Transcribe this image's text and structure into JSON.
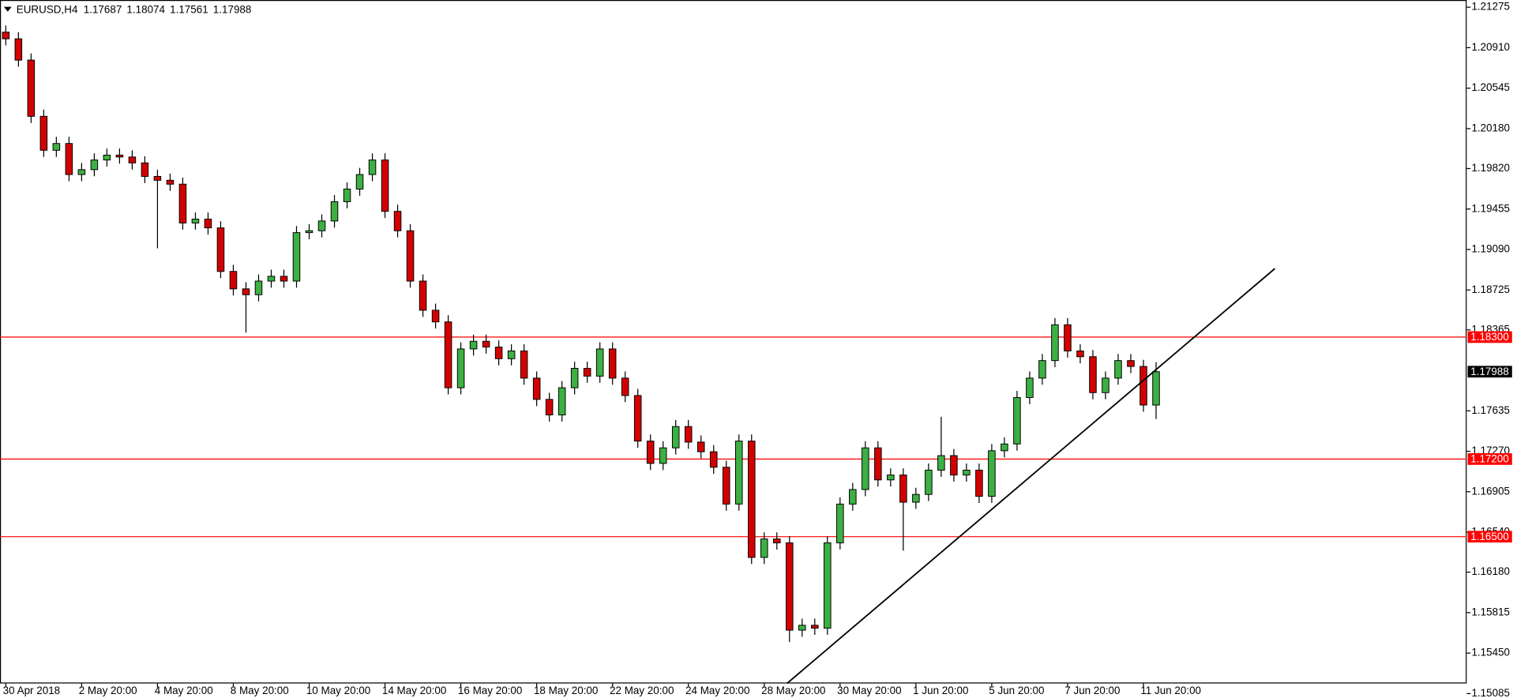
{
  "chart_data": {
    "type": "candlestick",
    "symbol": "EURUSD,H4",
    "categories": [
      "30 Apr 2018",
      null,
      null,
      null,
      null,
      null,
      "2 May 20:00",
      null,
      null,
      null,
      null,
      null,
      "4 May 20:00",
      null,
      null,
      null,
      null,
      null,
      "8 May 20:00",
      null,
      null,
      null,
      null,
      null,
      "10 May 20:00",
      null,
      null,
      null,
      null,
      null,
      "14 May 20:00",
      null,
      null,
      null,
      null,
      null,
      "16 May 20:00",
      null,
      null,
      null,
      null,
      null,
      "18 May 20:00",
      null,
      null,
      null,
      null,
      null,
      "22 May 20:00",
      null,
      null,
      null,
      null,
      null,
      "24 May 20:00",
      null,
      null,
      null,
      null,
      null,
      "28 May 20:00",
      null,
      null,
      null,
      null,
      null,
      "30 May 20:00",
      null,
      null,
      null,
      null,
      null,
      "1 Jun 20:00",
      null,
      null,
      null,
      null,
      null,
      "5 Jun 20:00",
      null,
      null,
      null,
      null,
      null,
      "7 Jun 20:00",
      null,
      null,
      null,
      null,
      null,
      "11 Jun 20:00",
      null
    ],
    "open": [
      1.2105,
      1.2099,
      1.20798,
      1.20291,
      1.19985,
      1.20046,
      1.19766,
      1.1981,
      1.19897,
      1.19941,
      1.19924,
      1.19871,
      1.19749,
      1.19714,
      1.19679,
      1.19329,
      1.19364,
      1.19285,
      1.18892,
      1.18735,
      1.18682,
      1.18805,
      1.18848,
      1.18805,
      1.19242,
      1.19259,
      1.19347,
      1.19521,
      1.19635,
      1.19766,
      1.19897,
      1.19434,
      1.19259,
      1.18805,
      1.18542,
      1.18437,
      1.17843,
      1.18193,
      1.18262,
      1.1821,
      1.18105,
      1.18175,
      1.1793,
      1.17738,
      1.17598,
      1.17843,
      1.18018,
      1.17948,
      1.18193,
      1.1793,
      1.17773,
      1.17362,
      1.17161,
      1.17301,
      1.17493,
      1.17353,
      1.17266,
      1.17126,
      1.16794,
      1.17362,
      1.16313,
      1.16479,
      1.16444,
      1.15657,
      1.15701,
      1.15675,
      1.16444,
      1.16794,
      1.16925,
      1.17301,
      1.17012,
      1.17056,
      1.16811,
      1.16881,
      1.171,
      1.17231,
      1.17056,
      1.171,
      1.16864,
      1.17275,
      1.17336,
      1.17755,
      1.1793,
      1.18088,
      1.18411,
      1.18175,
      1.18123,
      1.17799,
      1.1793,
      1.18088,
      1.18035,
      1.17687
    ],
    "high": [
      1.2111,
      1.2105,
      1.20858,
      1.20351,
      1.20106,
      1.20106,
      1.1987,
      1.19957,
      1.20001,
      1.20001,
      1.19984,
      1.19931,
      1.19809,
      1.19774,
      1.19739,
      1.19424,
      1.19424,
      1.19345,
      1.18952,
      1.18795,
      1.18865,
      1.18908,
      1.18908,
      1.19302,
      1.19319,
      1.19407,
      1.19581,
      1.19695,
      1.19826,
      1.19957,
      1.19957,
      1.19494,
      1.19319,
      1.18865,
      1.18602,
      1.18497,
      1.18253,
      1.18322,
      1.18322,
      1.1827,
      1.18235,
      1.18235,
      1.1799,
      1.17798,
      1.17903,
      1.18078,
      1.18078,
      1.18253,
      1.18253,
      1.1799,
      1.17833,
      1.17422,
      1.17361,
      1.17553,
      1.17553,
      1.17413,
      1.17326,
      1.17186,
      1.17422,
      1.17422,
      1.16539,
      1.16539,
      1.16504,
      1.15761,
      1.15761,
      1.16504,
      1.16854,
      1.16985,
      1.17361,
      1.17361,
      1.17116,
      1.17116,
      1.16941,
      1.1716,
      1.17581,
      1.17291,
      1.1716,
      1.1716,
      1.17335,
      1.17396,
      1.17815,
      1.1799,
      1.18148,
      1.18471,
      1.18471,
      1.18235,
      1.18183,
      1.1799,
      1.18148,
      1.18148,
      1.18095,
      1.18074
    ],
    "low": [
      1.2093,
      1.20738,
      1.20231,
      1.19925,
      1.19925,
      1.19706,
      1.19706,
      1.1975,
      1.19837,
      1.19864,
      1.19811,
      1.19689,
      1.191,
      1.19619,
      1.19269,
      1.19269,
      1.19225,
      1.18832,
      1.18675,
      1.18341,
      1.18622,
      1.18745,
      1.18745,
      1.18745,
      1.19182,
      1.19199,
      1.19287,
      1.19461,
      1.19575,
      1.19706,
      1.19374,
      1.19199,
      1.18745,
      1.18482,
      1.18377,
      1.17783,
      1.17783,
      1.18133,
      1.1815,
      1.18045,
      1.18045,
      1.1787,
      1.17678,
      1.17538,
      1.17538,
      1.17783,
      1.17888,
      1.17888,
      1.1787,
      1.17713,
      1.17302,
      1.17101,
      1.17101,
      1.17241,
      1.17293,
      1.17206,
      1.17066,
      1.16734,
      1.16734,
      1.16253,
      1.16253,
      1.16384,
      1.1555,
      1.15597,
      1.15615,
      1.15615,
      1.16384,
      1.16734,
      1.16865,
      1.16952,
      1.16952,
      1.16374,
      1.16751,
      1.16821,
      1.1704,
      1.16996,
      1.16996,
      1.16804,
      1.16804,
      1.17215,
      1.17276,
      1.17695,
      1.1787,
      1.18028,
      1.18115,
      1.18063,
      1.17739,
      1.17739,
      1.1787,
      1.17975,
      1.17627,
      1.17561
    ],
    "close": [
      1.2099,
      1.20798,
      1.20291,
      1.19985,
      1.20046,
      1.19766,
      1.1981,
      1.19897,
      1.19941,
      1.19924,
      1.19871,
      1.19749,
      1.19714,
      1.19679,
      1.19329,
      1.19364,
      1.19285,
      1.18892,
      1.18735,
      1.18682,
      1.18805,
      1.18848,
      1.18805,
      1.19242,
      1.19259,
      1.19347,
      1.19521,
      1.19635,
      1.19766,
      1.19897,
      1.19434,
      1.19259,
      1.18805,
      1.18542,
      1.18437,
      1.17843,
      1.18193,
      1.18262,
      1.1821,
      1.18105,
      1.18175,
      1.1793,
      1.17738,
      1.17598,
      1.17843,
      1.18018,
      1.17948,
      1.18193,
      1.1793,
      1.17773,
      1.17362,
      1.17161,
      1.17301,
      1.17493,
      1.17353,
      1.17266,
      1.17126,
      1.16794,
      1.17362,
      1.16313,
      1.16479,
      1.16444,
      1.15657,
      1.15701,
      1.15675,
      1.16444,
      1.16794,
      1.16925,
      1.17301,
      1.17012,
      1.17056,
      1.16811,
      1.16881,
      1.171,
      1.17231,
      1.17056,
      1.171,
      1.16864,
      1.17275,
      1.17336,
      1.17755,
      1.1793,
      1.18088,
      1.18411,
      1.18175,
      1.18123,
      1.17799,
      1.1793,
      1.18088,
      1.18035,
      1.17687,
      1.17988
    ],
    "up_color": "#3cb043",
    "down_color": "#d40000",
    "ylim": [
      1.1508,
      1.2134
    ],
    "yticks": [
      1.21275,
      {
        "value": 1.2091,
        "label": "1.20910"
      },
      1.20545,
      {
        "value": 1.2018,
        "label": "1.20180"
      },
      {
        "value": 1.1982,
        "label": "1.19820"
      },
      1.19455,
      {
        "value": 1.1909,
        "label": "1.19090"
      },
      1.18725,
      1.18365,
      1.17635,
      {
        "value": 1.1727,
        "label": "1.17270"
      },
      1.16905,
      {
        "value": 1.1654,
        "label": "1.16540"
      },
      {
        "value": 1.1618,
        "label": "1.16180"
      },
      1.15815,
      {
        "value": 1.1545,
        "label": "1.15450"
      },
      1.15085
    ],
    "hline_color": "#ff0000",
    "hlines": [
      {
        "value": 1.183,
        "label": "1.18300"
      },
      {
        "value": 1.172,
        "label": "1.17200"
      },
      {
        "value": 1.165,
        "label": "1.16500"
      }
    ],
    "trendline": {
      "x": [
        61.8,
        100.4
      ],
      "y": [
        1.15176,
        1.18918
      ]
    }
  }
}
